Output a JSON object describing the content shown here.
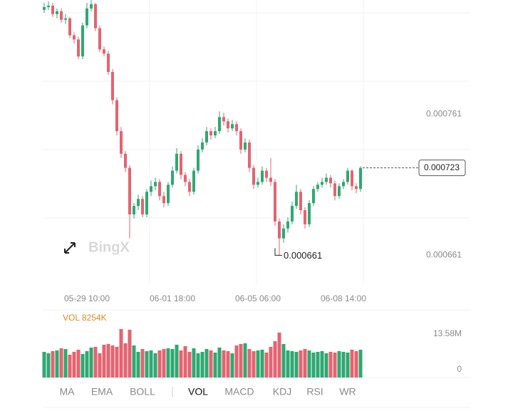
{
  "chart_data": {
    "type": "candlestick",
    "up_color": "#2fa872",
    "down_color": "#e5636f",
    "categories": [
      null,
      null,
      null,
      null,
      null,
      null,
      null,
      null,
      null,
      null,
      "05-29 10:00",
      null,
      null,
      null,
      null,
      null,
      null,
      null,
      null,
      null,
      null,
      null,
      null,
      null,
      null,
      null,
      null,
      null,
      null,
      null,
      "06-01 18:00",
      null,
      null,
      null,
      null,
      null,
      null,
      null,
      null,
      null,
      null,
      null,
      null,
      null,
      null,
      null,
      null,
      null,
      null,
      null,
      "06-05 06:00",
      null,
      null,
      null,
      null,
      null,
      null,
      null,
      null,
      null,
      null,
      null,
      null,
      null,
      null,
      null,
      null,
      null,
      null,
      null,
      "06-08 14:00",
      null,
      null,
      null,
      null
    ],
    "open": [
      0.000835,
      0.000837,
      0.000838,
      0.000832,
      0.000834,
      0.000828,
      0.000829,
      0.000817,
      0.000814,
      0.000802,
      0.000824,
      0.000836,
      0.000839,
      0.000822,
      0.000807,
      0.000804,
      0.000791,
      0.000771,
      0.000749,
      0.000733,
      0.000723,
      0.00069,
      0.000696,
      0.000701,
      0.00069,
      0.000706,
      0.00071,
      0.000713,
      0.000703,
      0.000698,
      0.000711,
      0.000721,
      0.000733,
      0.000718,
      0.000713,
      0.000706,
      0.000721,
      0.000736,
      0.000741,
      0.000749,
      0.000746,
      0.000749,
      0.000759,
      0.000756,
      0.000751,
      0.000754,
      0.000749,
      0.000736,
      0.000741,
      0.000723,
      0.000711,
      0.000713,
      0.000721,
      0.000716,
      0.000713,
      0.000685,
      0.000673,
      0.00068,
      0.000685,
      0.000696,
      0.000706,
      0.000693,
      0.000683,
      0.000698,
      0.000708,
      0.000711,
      0.000713,
      0.000716,
      0.000712,
      0.000703,
      0.00071,
      0.000713,
      0.000721,
      0.00071,
      0.000708
    ],
    "high": [
      0.00084,
      0.000841,
      0.00084,
      0.000836,
      0.000836,
      0.000832,
      0.00083,
      0.000819,
      0.000816,
      0.000826,
      0.00084,
      0.000842,
      0.00084,
      0.000824,
      0.000809,
      0.000806,
      0.000793,
      0.000773,
      0.000752,
      0.000735,
      0.000725,
      0.000698,
      0.000704,
      0.000703,
      0.000708,
      0.000714,
      0.000716,
      0.000715,
      0.000706,
      0.000713,
      0.000724,
      0.000737,
      0.000735,
      0.00072,
      0.000715,
      0.000723,
      0.000739,
      0.000744,
      0.000752,
      0.000751,
      0.000752,
      0.000763,
      0.000762,
      0.000758,
      0.000757,
      0.000756,
      0.000751,
      0.000744,
      0.000743,
      0.000725,
      0.000716,
      0.000724,
      0.000723,
      0.00073,
      0.000715,
      0.000687,
      0.000683,
      0.000688,
      0.000699,
      0.000711,
      0.000708,
      0.000695,
      0.0007,
      0.00071,
      0.000713,
      0.000716,
      0.000719,
      0.000718,
      0.000714,
      0.000712,
      0.000715,
      0.000723,
      0.000722,
      0.000712,
      0.000724
    ],
    "low": [
      0.000833,
      0.000835,
      0.00083,
      0.000829,
      0.000826,
      0.000825,
      0.000815,
      0.000811,
      0.0008,
      0.0008,
      0.000822,
      0.000834,
      0.00082,
      0.000805,
      0.000802,
      0.000789,
      0.000768,
      0.000746,
      0.00073,
      0.00072,
      0.000673,
      0.000687,
      0.000693,
      0.000688,
      0.000688,
      0.000703,
      0.000707,
      0.0007,
      0.000695,
      0.000696,
      0.000709,
      0.000719,
      0.000715,
      0.00071,
      0.000703,
      0.000704,
      0.000719,
      0.000734,
      0.000739,
      0.000743,
      0.000744,
      0.000747,
      0.000753,
      0.000748,
      0.000749,
      0.000746,
      0.000733,
      0.000734,
      0.00072,
      0.000708,
      0.000709,
      0.000711,
      0.000713,
      0.00071,
      0.000682,
      0.000661,
      0.00067,
      0.000677,
      0.000683,
      0.000694,
      0.00069,
      0.00068,
      0.000681,
      0.000696,
      0.000706,
      0.000709,
      0.000711,
      0.000709,
      0.0007,
      0.000701,
      0.000708,
      0.000711,
      0.000707,
      0.000705,
      0.000706
    ],
    "close": [
      0.000837,
      0.000838,
      0.000832,
      0.000834,
      0.000828,
      0.000829,
      0.000817,
      0.000814,
      0.000802,
      0.000824,
      0.000836,
      0.000839,
      0.000822,
      0.000807,
      0.000804,
      0.000791,
      0.000771,
      0.000749,
      0.000733,
      0.000723,
      0.00069,
      0.000696,
      0.000701,
      0.00069,
      0.000706,
      0.00071,
      0.000713,
      0.000703,
      0.000698,
      0.000711,
      0.000721,
      0.000733,
      0.000718,
      0.000713,
      0.000706,
      0.000721,
      0.000736,
      0.000741,
      0.000749,
      0.000746,
      0.000749,
      0.000759,
      0.000756,
      0.000751,
      0.000754,
      0.000749,
      0.000736,
      0.000741,
      0.000723,
      0.000711,
      0.000713,
      0.000721,
      0.000716,
      0.000713,
      0.000685,
      0.000673,
      0.00068,
      0.000685,
      0.000696,
      0.000706,
      0.000693,
      0.000683,
      0.000698,
      0.000708,
      0.000711,
      0.000713,
      0.000716,
      0.000712,
      0.000703,
      0.00071,
      0.000713,
      0.000721,
      0.00071,
      0.000708,
      0.000723
    ],
    "ylim": [
      0.00064,
      0.000842
    ],
    "yticks": [
      0.000761,
      0.000661
    ],
    "last_price": 0.000723,
    "low_marker": 0.000661,
    "watermark": "BingX",
    "volume": {
      "label": "VOL 8254K",
      "values": [
        7200000,
        6800000,
        7400000,
        7600000,
        8200000,
        8000000,
        6400000,
        7200000,
        7800000,
        6600000,
        7400000,
        8400000,
        8600000,
        6800000,
        9200000,
        9400000,
        9000000,
        8600000,
        13580000,
        9600000,
        13400000,
        9000000,
        7200000,
        8000000,
        7400000,
        7600000,
        6800000,
        7600000,
        8000000,
        8200000,
        8000000,
        9200000,
        7600000,
        8800000,
        7200000,
        8200000,
        6800000,
        7200000,
        8000000,
        7600000,
        7000000,
        8400000,
        7600000,
        7400000,
        6800000,
        9000000,
        9400000,
        9600000,
        8000000,
        7400000,
        7600000,
        7800000,
        7000000,
        8600000,
        10200000,
        12600000,
        9400000,
        7600000,
        7400000,
        7200000,
        7600000,
        8000000,
        7600000,
        7000000,
        7200000,
        7400000,
        6800000,
        7200000,
        7000000,
        7400000,
        7200000,
        7000000,
        7800000,
        7400000,
        7800000
      ],
      "ylim": [
        0,
        13580000
      ],
      "yticks": [
        {
          "value": 13580000,
          "label": "13.58M"
        },
        0
      ]
    },
    "tabs": [
      "MA",
      "EMA",
      "BOLL",
      "VOL",
      "MACD",
      "KDJ",
      "RSI",
      "WR"
    ],
    "active_tab": 3
  }
}
